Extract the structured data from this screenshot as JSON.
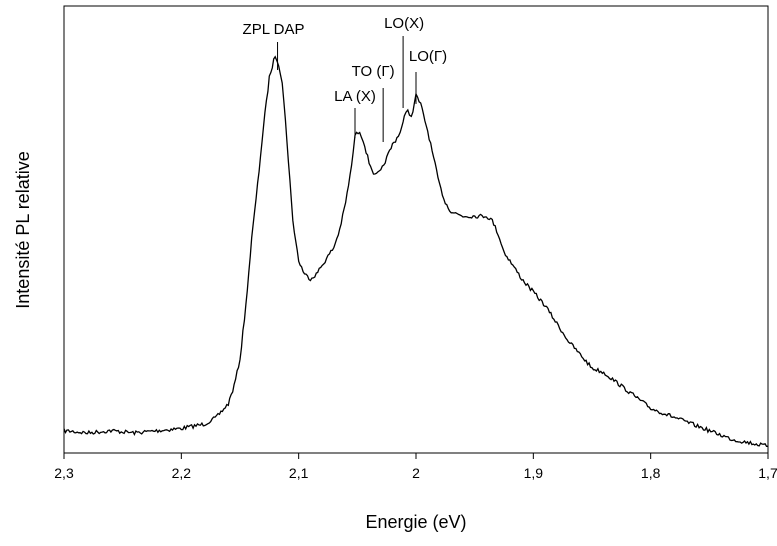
{
  "chart_data": {
    "type": "line",
    "title": "",
    "xlabel": "Energie (eV)",
    "ylabel": "Intensité PL relative",
    "xlim": [
      2.3,
      1.7
    ],
    "x_reversed": true,
    "ylim": [
      0,
      1.0
    ],
    "y_ticks_shown": false,
    "grid": false,
    "legend": "none",
    "line_color": "#000000",
    "x_ticks": [
      2.3,
      2.2,
      2.1,
      2.0,
      1.9,
      1.8,
      1.7
    ],
    "x_tick_labels": [
      "2,3",
      "2,2",
      "2,1",
      "2",
      "1,9",
      "1,8",
      "1,7"
    ],
    "series": [
      {
        "x": [
          2.3,
          2.28,
          2.26,
          2.24,
          2.22,
          2.2,
          2.18,
          2.17,
          2.16,
          2.155,
          2.15,
          2.145,
          2.14,
          2.135,
          2.13,
          2.125,
          2.12,
          2.117,
          2.114,
          2.11,
          2.105,
          2.1,
          2.095,
          2.09,
          2.085,
          2.08,
          2.075,
          2.07,
          2.065,
          2.06,
          2.055,
          2.052,
          2.048,
          2.045,
          2.04,
          2.035,
          2.03,
          2.025,
          2.02,
          2.015,
          2.012,
          2.01,
          2.007,
          2.004,
          2.0,
          1.996,
          1.99,
          1.985,
          1.98,
          1.975,
          1.97,
          1.96,
          1.95,
          1.94,
          1.935,
          1.93,
          1.925,
          1.92,
          1.91,
          1.9,
          1.89,
          1.88,
          1.87,
          1.86,
          1.85,
          1.84,
          1.83,
          1.82,
          1.81,
          1.8,
          1.79,
          1.78,
          1.77,
          1.76,
          1.75,
          1.74,
          1.73,
          1.72,
          1.71,
          1.7
        ],
        "y": [
          0.05,
          0.045,
          0.05,
          0.045,
          0.05,
          0.055,
          0.065,
          0.08,
          0.11,
          0.15,
          0.21,
          0.33,
          0.48,
          0.6,
          0.73,
          0.84,
          0.89,
          0.87,
          0.83,
          0.7,
          0.52,
          0.43,
          0.4,
          0.39,
          0.4,
          0.42,
          0.44,
          0.46,
          0.5,
          0.56,
          0.64,
          0.71,
          0.72,
          0.7,
          0.65,
          0.62,
          0.63,
          0.66,
          0.69,
          0.71,
          0.73,
          0.75,
          0.77,
          0.75,
          0.8,
          0.78,
          0.72,
          0.66,
          0.6,
          0.56,
          0.54,
          0.53,
          0.53,
          0.53,
          0.52,
          0.49,
          0.45,
          0.43,
          0.39,
          0.36,
          0.33,
          0.29,
          0.25,
          0.22,
          0.19,
          0.18,
          0.16,
          0.14,
          0.12,
          0.1,
          0.09,
          0.08,
          0.07,
          0.06,
          0.05,
          0.04,
          0.03,
          0.025,
          0.02,
          0.015
        ]
      }
    ],
    "annotations": [
      {
        "label": "ZPL DAP",
        "x": 2.118
      },
      {
        "label": "LA (X)",
        "x": 2.052
      },
      {
        "label": "TO (Γ)",
        "x": 2.028
      },
      {
        "label": "LO(X)",
        "x": 2.011
      },
      {
        "label": "LO(Γ)",
        "x": 2.0
      }
    ]
  }
}
